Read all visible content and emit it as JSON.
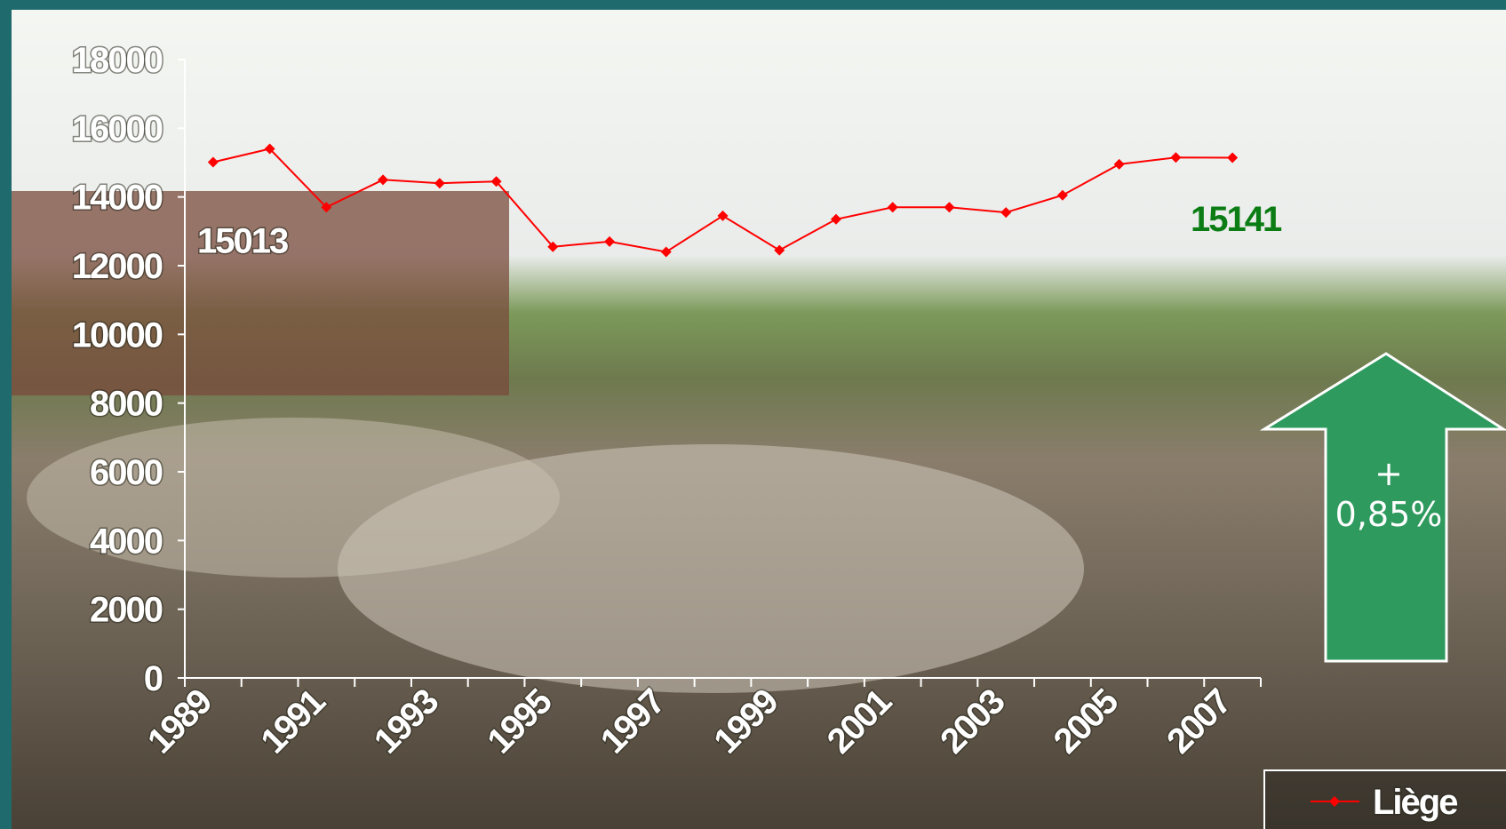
{
  "chart_data": {
    "type": "line",
    "categories": [
      "1989",
      null,
      "1991",
      null,
      "1993",
      null,
      "1995",
      null,
      "1997",
      null,
      "1999",
      null,
      "2001",
      null,
      "2003",
      null,
      "2005",
      null,
      "2007"
    ],
    "series": [
      {
        "name": "Liège",
        "color": "#ff0000",
        "values": [
          15013,
          15400,
          13700,
          14500,
          14400,
          14450,
          12550,
          12700,
          12400,
          13450,
          12450,
          13350,
          13700,
          13700,
          13550,
          14050,
          14950,
          15150,
          15141
        ]
      }
    ],
    "ylim": [
      0,
      18000
    ],
    "yticks": [
      0,
      2000,
      4000,
      6000,
      8000,
      10000,
      12000,
      14000,
      16000,
      18000
    ],
    "grid": false,
    "legend": "bottom-right",
    "annotation": "+ 0,85%"
  }
}
